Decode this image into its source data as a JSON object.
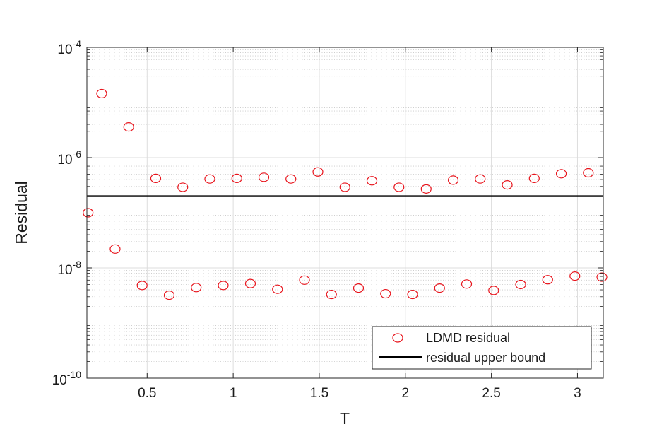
{
  "chart_data": {
    "type": "scatter",
    "title": "",
    "xlabel": "T",
    "ylabel": "Residual",
    "xlim": [
      0.15,
      3.15
    ],
    "ylim": [
      1e-10,
      0.0001
    ],
    "yscale": "log",
    "grid": true,
    "minor_grid": true,
    "legend_position": "bottom-right",
    "x_ticks": [
      0.5,
      1,
      1.5,
      2,
      2.5,
      3
    ],
    "x_tick_labels": [
      "0.5",
      "1",
      "1.5",
      "2",
      "2.5",
      "3"
    ],
    "y_ticks": [
      {
        "value": 1e-10,
        "base": "10",
        "exp": "-10"
      },
      {
        "value": 1e-08,
        "base": "10",
        "exp": "-8"
      },
      {
        "value": 1e-06,
        "base": "10",
        "exp": "-6"
      },
      {
        "value": 0.0001,
        "base": "10",
        "exp": "-4"
      }
    ],
    "series": [
      {
        "name": "LDMD residual",
        "marker": "circle-open",
        "color": "#e8141c",
        "points": [
          [
            0.157,
            1e-07
          ],
          [
            0.236,
            1.45e-05
          ],
          [
            0.314,
            2.2e-08
          ],
          [
            0.393,
            3.6e-06
          ],
          [
            0.471,
            4.8e-09
          ],
          [
            0.55,
            4.2e-07
          ],
          [
            0.628,
            3.2e-09
          ],
          [
            0.707,
            2.9e-07
          ],
          [
            0.785,
            4.4e-09
          ],
          [
            0.864,
            4.1e-07
          ],
          [
            0.942,
            4.8e-09
          ],
          [
            1.021,
            4.2e-07
          ],
          [
            1.1,
            5.2e-09
          ],
          [
            1.178,
            4.4e-07
          ],
          [
            1.257,
            4.1e-09
          ],
          [
            1.335,
            4.1e-07
          ],
          [
            1.414,
            6e-09
          ],
          [
            1.492,
            5.5e-07
          ],
          [
            1.571,
            3.3e-09
          ],
          [
            1.649,
            2.9e-07
          ],
          [
            1.728,
            4.3e-09
          ],
          [
            1.806,
            3.8e-07
          ],
          [
            1.885,
            3.4e-09
          ],
          [
            1.963,
            2.9e-07
          ],
          [
            2.042,
            3.3e-09
          ],
          [
            2.121,
            2.7e-07
          ],
          [
            2.199,
            4.3e-09
          ],
          [
            2.278,
            3.9e-07
          ],
          [
            2.356,
            5.1e-09
          ],
          [
            2.435,
            4.1e-07
          ],
          [
            2.513,
            3.9e-09
          ],
          [
            2.592,
            3.2e-07
          ],
          [
            2.67,
            5e-09
          ],
          [
            2.749,
            4.2e-07
          ],
          [
            2.827,
            6.1e-09
          ],
          [
            2.906,
            5.1e-07
          ],
          [
            2.985,
            7.1e-09
          ],
          [
            3.063,
            5.3e-07
          ],
          [
            3.142,
            6.8e-09
          ]
        ]
      },
      {
        "name": "residual upper bound",
        "style": "line",
        "color": "#000000",
        "value": 2e-07
      }
    ]
  }
}
